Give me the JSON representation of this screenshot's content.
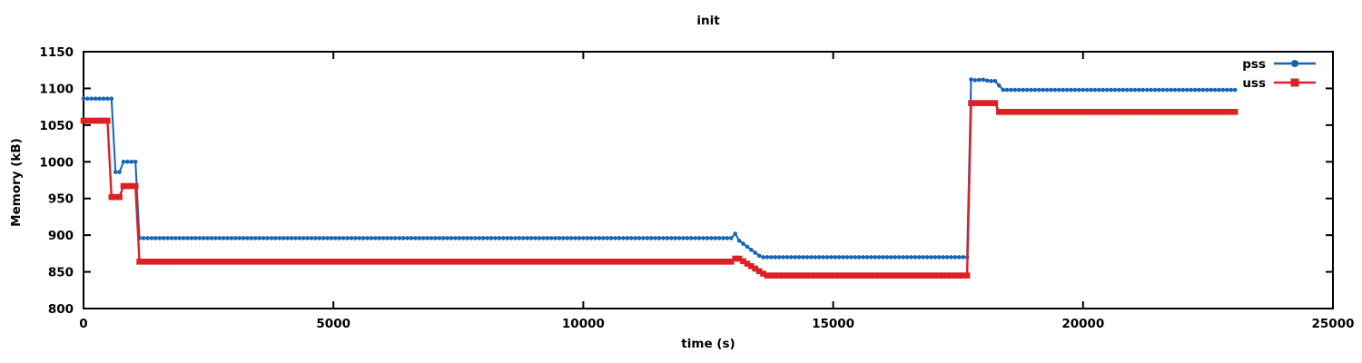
{
  "title": "init",
  "axes": {
    "x": {
      "label": "time (s)",
      "min": 0,
      "max": 25000,
      "ticks": [
        0,
        5000,
        10000,
        15000,
        20000,
        25000
      ]
    },
    "y": {
      "label": "Memory (kB)",
      "min": 800,
      "max": 1150,
      "ticks": [
        800,
        850,
        900,
        950,
        1000,
        1050,
        1100,
        1150
      ]
    }
  },
  "legend": {
    "position": "top-right",
    "items": [
      {
        "label": "pss",
        "color": "#1565b4",
        "marker": "circle"
      },
      {
        "label": "uss",
        "color": "#dc2026",
        "marker": "square"
      }
    ]
  },
  "colors": {
    "pss": "#1565b4",
    "uss": "#dc2026",
    "border": "#000000",
    "background": "#ffffff",
    "text": "#000000"
  },
  "chart_data": {
    "type": "line",
    "title": "init",
    "xlabel": "time (s)",
    "ylabel": "Memory (kB)",
    "xlim": [
      0,
      25000
    ],
    "ylim": [
      800,
      1150
    ],
    "grid": false,
    "legend_position": "top-right",
    "sample_interval_s": 80,
    "t_end": 23040,
    "series": [
      {
        "name": "pss",
        "color": "#1565b4",
        "marker": "circle",
        "marker_size": 4.6,
        "line_width": 2,
        "breakpoints": [
          [
            0,
            1086
          ],
          [
            612,
            1086
          ],
          [
            620,
            986
          ],
          [
            738,
            986
          ],
          [
            746,
            1000
          ],
          [
            1050,
            1000
          ],
          [
            1058,
            896
          ],
          [
            12975,
            896
          ],
          [
            12985,
            902
          ],
          [
            13040,
            902
          ],
          [
            13050,
            896
          ],
          [
            13560,
            870
          ],
          [
            17700,
            870
          ],
          [
            17710,
            1113
          ],
          [
            17850,
            1111
          ],
          [
            17990,
            1112
          ],
          [
            18130,
            1110
          ],
          [
            18315,
            1110
          ],
          [
            18325,
            1098
          ],
          [
            23040,
            1098
          ]
        ]
      },
      {
        "name": "uss",
        "color": "#dc2026",
        "marker": "square",
        "marker_size": 6.6,
        "line_width": 2.4,
        "breakpoints": [
          [
            0,
            1056
          ],
          [
            552,
            1056
          ],
          [
            560,
            952
          ],
          [
            738,
            952
          ],
          [
            746,
            967
          ],
          [
            1062,
            967
          ],
          [
            1070,
            864
          ],
          [
            12985,
            864
          ],
          [
            12995,
            868
          ],
          [
            13120,
            868
          ],
          [
            13660,
            845
          ],
          [
            17700,
            845
          ],
          [
            17710,
            1080
          ],
          [
            18260,
            1080
          ],
          [
            18270,
            1068
          ],
          [
            23040,
            1068
          ]
        ]
      }
    ]
  }
}
